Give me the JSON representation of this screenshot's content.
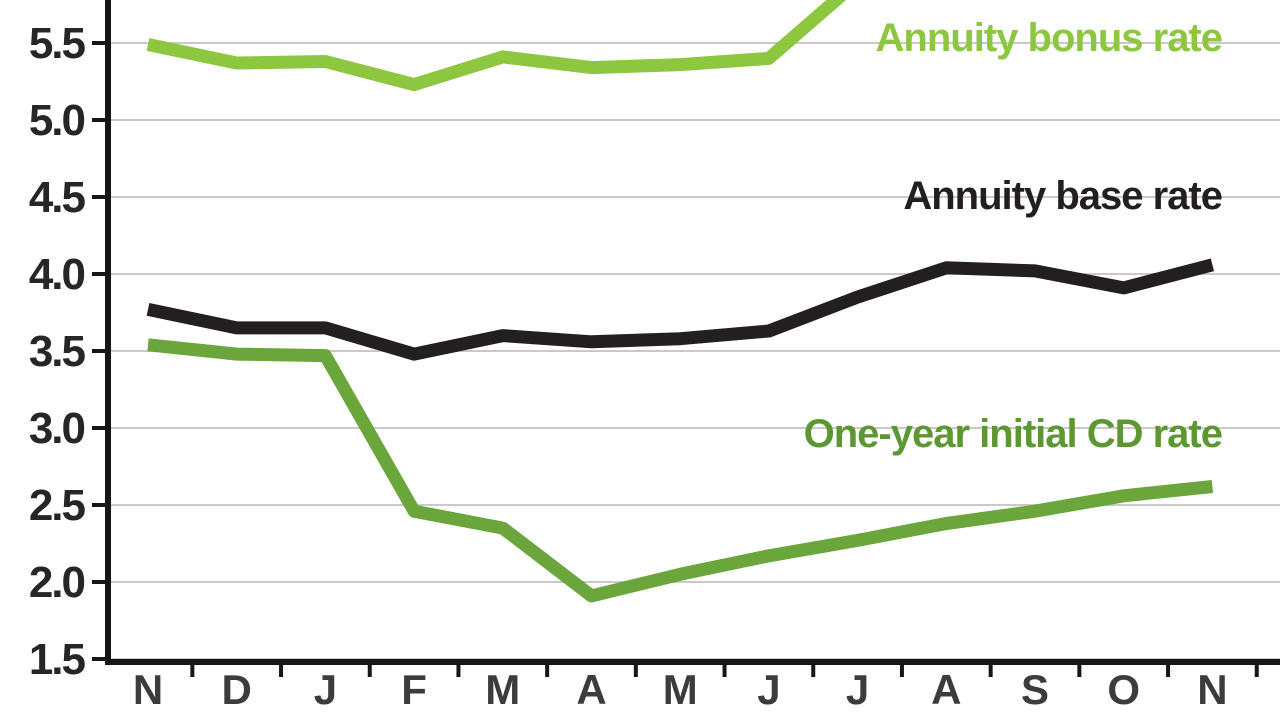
{
  "chart_data": {
    "type": "line",
    "categories": [
      "N",
      "D",
      "J",
      "F",
      "M",
      "A",
      "M",
      "J",
      "J",
      "A",
      "S",
      "O",
      "N"
    ],
    "y_ticks": [
      5.5,
      5.0,
      4.5,
      4.0,
      3.5,
      3.0,
      2.5,
      2.0,
      1.5
    ],
    "ylim": [
      1.5,
      5.78
    ],
    "grid": true,
    "legend_position": "inline-labels",
    "series": [
      {
        "name": "Annuity bonus rate",
        "color": "#8dc63f",
        "values": [
          5.49,
          5.37,
          5.38,
          5.23,
          5.41,
          5.34,
          5.36,
          5.4,
          5.9,
          null,
          null,
          null,
          null
        ],
        "note": "line rises off the top of the chart after the second J"
      },
      {
        "name": "Annuity base rate",
        "color": "#231f20",
        "values": [
          3.77,
          3.65,
          3.65,
          3.48,
          3.6,
          3.56,
          3.58,
          3.63,
          3.85,
          4.04,
          4.02,
          3.91,
          4.06
        ]
      },
      {
        "name": "One-year initial CD rate",
        "color": "#6aa63b",
        "values": [
          3.54,
          3.48,
          3.47,
          2.46,
          2.35,
          1.91,
          2.05,
          2.17,
          2.27,
          2.38,
          2.46,
          2.56,
          2.62
        ]
      }
    ],
    "annotations": [
      {
        "text": "Annuity bonus rate",
        "color": "#8dc63f"
      },
      {
        "text": "Annuity base rate",
        "color": "#231f20"
      },
      {
        "text": "One-year initial CD rate",
        "color": "#5d9732"
      }
    ],
    "axis_color": "#161616",
    "gridline_color": "#c9c9c9"
  }
}
